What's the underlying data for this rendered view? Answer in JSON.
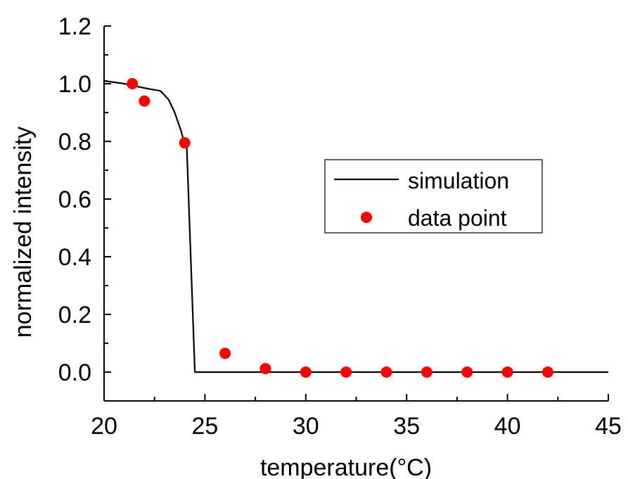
{
  "chart_data": {
    "type": "line",
    "xlabel": "temperature(°C)",
    "ylabel": "normalized intensity",
    "xlim": [
      20,
      45
    ],
    "ylim": [
      -0.1,
      1.2
    ],
    "x_ticks": [
      20,
      25,
      30,
      35,
      40,
      45
    ],
    "y_ticks": [
      0.0,
      0.2,
      0.4,
      0.6,
      0.8,
      1.0,
      1.2
    ],
    "x_tick_labels": [
      "20",
      "25",
      "30",
      "35",
      "40",
      "45"
    ],
    "y_tick_labels": [
      "0.0",
      "0.2",
      "0.4",
      "0.6",
      "0.8",
      "1.0",
      "1.2"
    ],
    "grid": false,
    "legend_position": "center-right",
    "series": [
      {
        "name": "simulation",
        "kind": "line",
        "color": "#000000",
        "x": [
          20.0,
          21.0,
          22.0,
          22.8,
          23.2,
          23.5,
          23.8,
          24.0,
          24.1,
          24.5,
          25.0,
          30.0,
          35.0,
          40.0,
          45.0
        ],
        "y": [
          1.01,
          1.0,
          0.985,
          0.975,
          0.945,
          0.9,
          0.84,
          0.79,
          0.78,
          0.0,
          0.0,
          0.0,
          0.0,
          0.0,
          0.0
        ]
      },
      {
        "name": "data point",
        "kind": "scatter",
        "color": "#ff0000",
        "x": [
          21.4,
          22.0,
          24.0,
          26.0,
          28.0,
          30.0,
          32.0,
          34.0,
          36.0,
          38.0,
          40.0,
          42.0
        ],
        "y": [
          1.0,
          0.94,
          0.795,
          0.065,
          0.012,
          0.0,
          0.0,
          0.0,
          0.0,
          0.0,
          0.0,
          0.0
        ]
      }
    ]
  }
}
